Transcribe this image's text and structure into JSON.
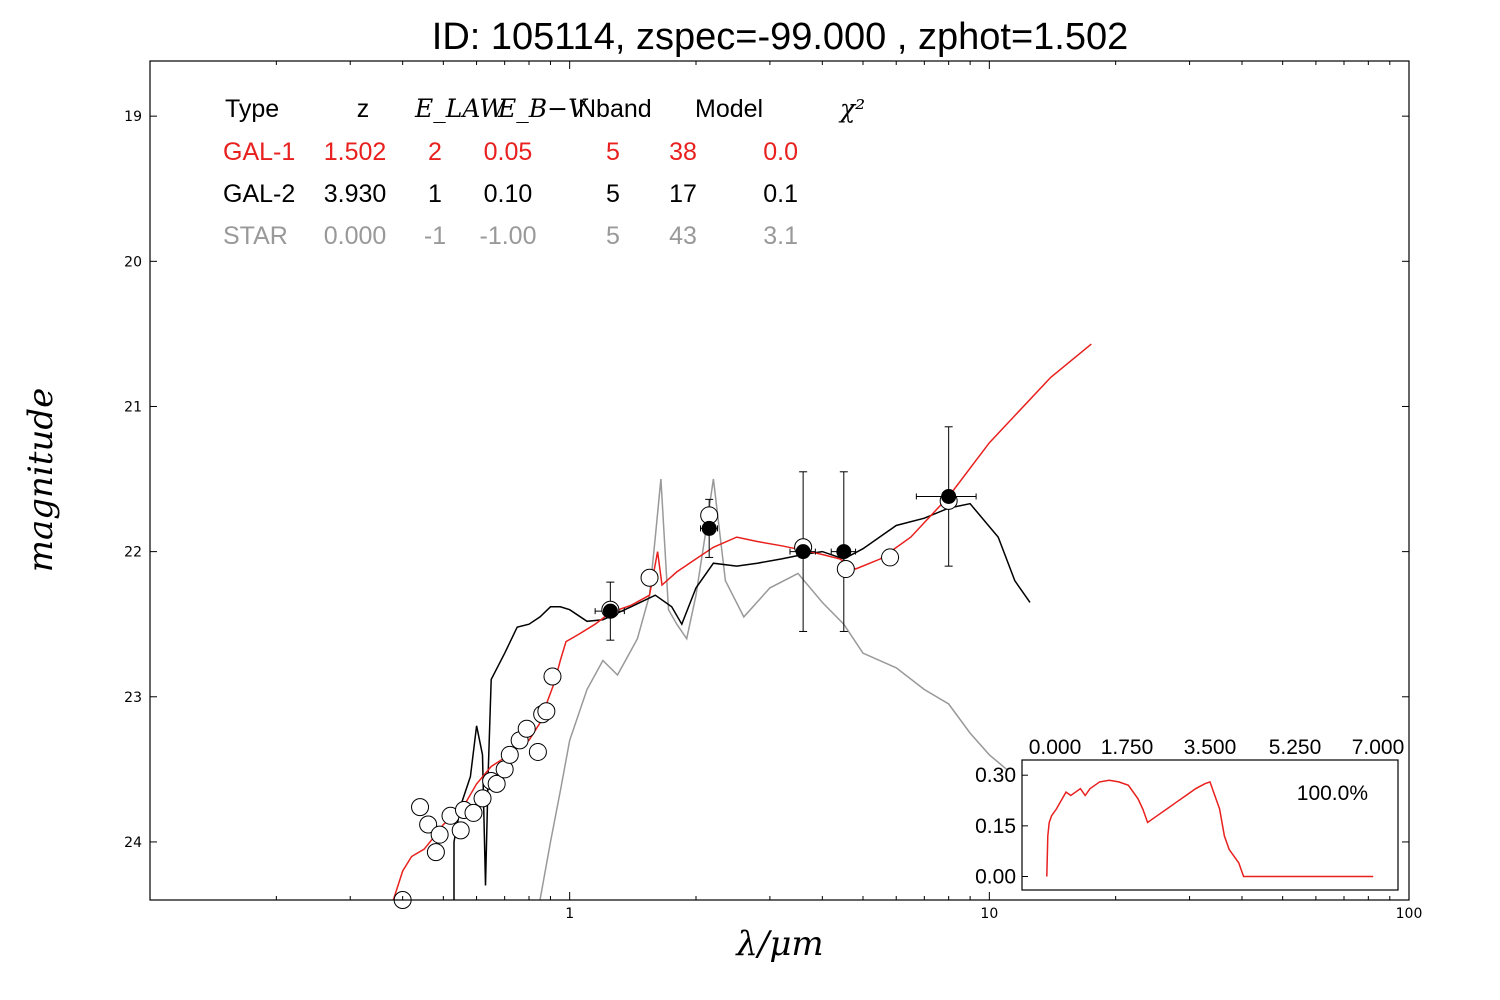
{
  "chart_data": {
    "type": "line",
    "title": "ID:  105114, zspec=-99.000 , zphot=1.502",
    "xlabel": "λ/μm",
    "ylabel": "magnitude",
    "x_scale": "log",
    "xlim": [
      0.1,
      100
    ],
    "ylim": [
      24.4,
      18.62
    ],
    "y_inverted": true,
    "x_ticks": [
      1,
      10,
      100
    ],
    "x_tick_labels": [
      "1",
      "10",
      "100"
    ],
    "y_ticks": [
      19,
      20,
      21,
      22,
      23,
      24
    ],
    "y_tick_labels": [
      "19",
      "20",
      "21",
      "22",
      "23",
      "24"
    ],
    "legend_table": {
      "headers": [
        "Type",
        "z",
        "E_LAW",
        "E_B−V",
        "Nband",
        "Model",
        "χ²"
      ],
      "rows": [
        {
          "type": "GAL-1",
          "z": "1.502",
          "elaw": "2",
          "ebv": "0.05",
          "nband": "5",
          "model": "38",
          "chi2": "0.0",
          "color": "#e8201e"
        },
        {
          "type": "GAL-2",
          "z": "3.930",
          "elaw": "1",
          "ebv": "0.10",
          "nband": "5",
          "model": "17",
          "chi2": "0.1",
          "color": "#000000"
        },
        {
          "type": "STAR",
          "z": "0.000",
          "elaw": "-1",
          "ebv": "-1.00",
          "nband": "5",
          "model": "43",
          "chi2": "3.1",
          "color": "#999999"
        }
      ]
    },
    "series": [
      {
        "name": "GAL-1",
        "color": "#e8201e",
        "points": [
          [
            0.38,
            24.4
          ],
          [
            0.4,
            24.2
          ],
          [
            0.42,
            24.1
          ],
          [
            0.45,
            24.05
          ],
          [
            0.48,
            23.95
          ],
          [
            0.5,
            23.88
          ],
          [
            0.53,
            23.82
          ],
          [
            0.56,
            23.75
          ],
          [
            0.6,
            23.6
          ],
          [
            0.65,
            23.48
          ],
          [
            0.7,
            23.42
          ],
          [
            0.75,
            23.35
          ],
          [
            0.8,
            23.3
          ],
          [
            0.85,
            23.18
          ],
          [
            0.88,
            23.05
          ],
          [
            0.92,
            22.9
          ],
          [
            0.95,
            22.75
          ],
          [
            0.98,
            22.62
          ],
          [
            1.05,
            22.57
          ],
          [
            1.15,
            22.5
          ],
          [
            1.25,
            22.42
          ],
          [
            1.4,
            22.37
          ],
          [
            1.55,
            22.3
          ],
          [
            1.62,
            22.0
          ],
          [
            1.66,
            22.23
          ],
          [
            1.8,
            22.14
          ],
          [
            2.0,
            22.05
          ],
          [
            2.2,
            21.97
          ],
          [
            2.5,
            21.9
          ],
          [
            2.8,
            21.93
          ],
          [
            3.2,
            21.96
          ],
          [
            3.6,
            21.99
          ],
          [
            4.0,
            22.02
          ],
          [
            4.4,
            22.05
          ],
          [
            4.8,
            22.12
          ],
          [
            5.5,
            22.05
          ],
          [
            6.5,
            21.9
          ],
          [
            8.0,
            21.62
          ],
          [
            10.0,
            21.25
          ],
          [
            14.0,
            20.8
          ],
          [
            17.5,
            20.57
          ]
        ]
      },
      {
        "name": "GAL-2",
        "color": "#000000",
        "points": [
          [
            0.53,
            24.4
          ],
          [
            0.53,
            24.0
          ],
          [
            0.55,
            23.75
          ],
          [
            0.58,
            23.55
          ],
          [
            0.6,
            23.2
          ],
          [
            0.62,
            23.4
          ],
          [
            0.63,
            24.3
          ],
          [
            0.64,
            23.5
          ],
          [
            0.65,
            22.88
          ],
          [
            0.7,
            22.7
          ],
          [
            0.75,
            22.52
          ],
          [
            0.8,
            22.5
          ],
          [
            0.85,
            22.45
          ],
          [
            0.9,
            22.38
          ],
          [
            0.95,
            22.38
          ],
          [
            1.0,
            22.4
          ],
          [
            1.1,
            22.48
          ],
          [
            1.2,
            22.47
          ],
          [
            1.4,
            22.38
          ],
          [
            1.6,
            22.3
          ],
          [
            1.75,
            22.38
          ],
          [
            1.85,
            22.5
          ],
          [
            2.0,
            22.25
          ],
          [
            2.2,
            22.08
          ],
          [
            2.5,
            22.1
          ],
          [
            2.8,
            22.08
          ],
          [
            3.2,
            22.05
          ],
          [
            3.6,
            22.02
          ],
          [
            4.0,
            22.0
          ],
          [
            4.5,
            22.05
          ],
          [
            5.0,
            21.98
          ],
          [
            6.0,
            21.82
          ],
          [
            7.0,
            21.77
          ],
          [
            8.0,
            21.7
          ],
          [
            9.0,
            21.67
          ],
          [
            10.5,
            21.9
          ],
          [
            11.5,
            22.2
          ],
          [
            12.5,
            22.35
          ]
        ]
      },
      {
        "name": "STAR",
        "color": "#999999",
        "points": [
          [
            0.85,
            24.4
          ],
          [
            0.9,
            24.0
          ],
          [
            0.95,
            23.65
          ],
          [
            1.0,
            23.3
          ],
          [
            1.1,
            22.95
          ],
          [
            1.2,
            22.75
          ],
          [
            1.3,
            22.85
          ],
          [
            1.45,
            22.6
          ],
          [
            1.55,
            22.3
          ],
          [
            1.6,
            21.9
          ],
          [
            1.65,
            21.5
          ],
          [
            1.72,
            22.4
          ],
          [
            1.8,
            22.5
          ],
          [
            1.9,
            22.6
          ],
          [
            2.0,
            22.3
          ],
          [
            2.1,
            21.9
          ],
          [
            2.2,
            21.5
          ],
          [
            2.35,
            22.2
          ],
          [
            2.6,
            22.45
          ],
          [
            3.0,
            22.25
          ],
          [
            3.5,
            22.15
          ],
          [
            4.0,
            22.35
          ],
          [
            4.5,
            22.5
          ],
          [
            5.0,
            22.7
          ],
          [
            6.0,
            22.8
          ],
          [
            7.0,
            22.95
          ],
          [
            8.0,
            23.05
          ],
          [
            9.0,
            23.25
          ],
          [
            10.0,
            23.4
          ],
          [
            11.0,
            23.5
          ]
        ]
      }
    ],
    "obs_points": [
      {
        "x": 1.25,
        "y": 22.41,
        "yerr": 0.2,
        "xerr": 0.1
      },
      {
        "x": 2.15,
        "y": 21.84,
        "yerr": 0.2,
        "xerr": 0.1
      },
      {
        "x": 3.6,
        "y": 22.0,
        "yerr": 0.55,
        "xerr": 0.25
      },
      {
        "x": 4.5,
        "y": 22.0,
        "yerr": 0.55,
        "xerr": 0.3
      },
      {
        "x": 8.0,
        "y": 21.62,
        "yerr": 0.48,
        "xerr": 1.3
      }
    ],
    "model_points": [
      [
        0.4,
        24.4
      ],
      [
        0.44,
        23.76
      ],
      [
        0.46,
        23.88
      ],
      [
        0.48,
        24.07
      ],
      [
        0.49,
        23.95
      ],
      [
        0.52,
        23.82
      ],
      [
        0.55,
        23.92
      ],
      [
        0.56,
        23.78
      ],
      [
        0.59,
        23.8
      ],
      [
        0.62,
        23.7
      ],
      [
        0.65,
        23.58
      ],
      [
        0.67,
        23.6
      ],
      [
        0.7,
        23.5
      ],
      [
        0.72,
        23.4
      ],
      [
        0.76,
        23.3
      ],
      [
        0.79,
        23.22
      ],
      [
        0.84,
        23.38
      ],
      [
        0.86,
        23.12
      ],
      [
        0.88,
        23.1
      ],
      [
        0.91,
        22.86
      ],
      [
        1.25,
        22.4
      ],
      [
        1.55,
        22.18
      ],
      [
        2.15,
        21.75
      ],
      [
        3.6,
        21.97
      ],
      [
        4.55,
        22.12
      ],
      [
        5.8,
        22.04
      ],
      [
        8.0,
        21.65
      ]
    ],
    "inset": {
      "x_ticks": [
        "0.000",
        "1.750",
        "3.500",
        "5.250",
        "7.000"
      ],
      "y_ticks": [
        "0.00",
        "0.15",
        "0.30"
      ],
      "xlim": [
        0,
        7
      ],
      "ylim": [
        -0.04,
        0.345
      ],
      "annotation": "100.0%",
      "color": "#e8201e",
      "x": [
        0.1,
        0.12,
        0.15,
        0.2,
        0.3,
        0.5,
        0.6,
        0.8,
        0.9,
        1.0,
        1.1,
        1.2,
        1.4,
        1.6,
        1.8,
        2.0,
        2.1,
        2.2,
        2.4,
        2.6,
        2.8,
        3.0,
        3.2,
        3.4,
        3.5,
        3.6,
        3.7,
        3.8,
        3.9,
        4.0,
        4.1,
        4.2,
        4.3,
        4.4,
        4.6,
        5.0,
        6.0,
        6.9
      ],
      "y": [
        0.0,
        0.12,
        0.16,
        0.18,
        0.2,
        0.25,
        0.24,
        0.26,
        0.24,
        0.26,
        0.27,
        0.28,
        0.285,
        0.28,
        0.27,
        0.23,
        0.2,
        0.16,
        0.18,
        0.2,
        0.22,
        0.24,
        0.26,
        0.275,
        0.28,
        0.24,
        0.2,
        0.12,
        0.08,
        0.06,
        0.04,
        0.0,
        0.0,
        0.0,
        0.0,
        0.0,
        0.0,
        0.0
      ]
    }
  }
}
